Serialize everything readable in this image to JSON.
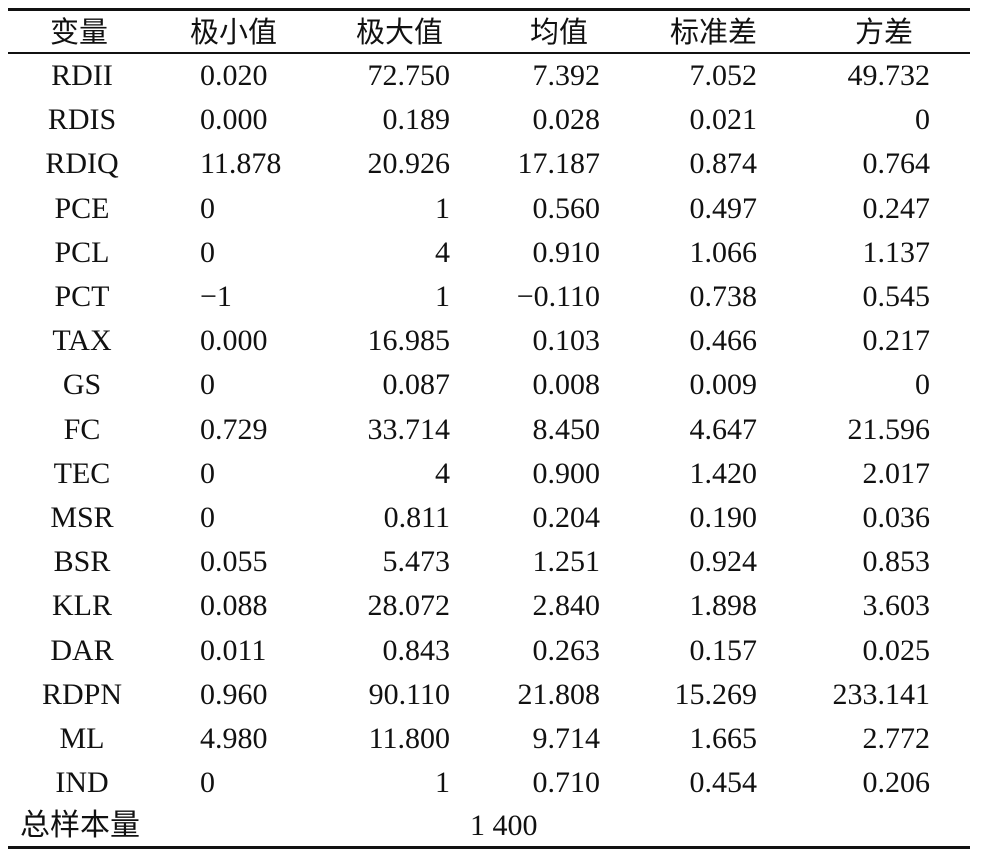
{
  "table": {
    "headers": [
      "变量",
      "极小值",
      "极大值",
      "均值",
      "标准差",
      "方差"
    ],
    "rows": [
      {
        "var": "RDII",
        "min": "0.020",
        "max": "72.750",
        "mean": "7.392",
        "sd": "7.052",
        "variance": "49.732"
      },
      {
        "var": "RDIS",
        "min": "0.000",
        "max": "0.189",
        "mean": "0.028",
        "sd": "0.021",
        "variance": "0"
      },
      {
        "var": "RDIQ",
        "min": "11.878",
        "max": "20.926",
        "mean": "17.187",
        "sd": "0.874",
        "variance": "0.764"
      },
      {
        "var": "PCE",
        "min": "0",
        "max": "1",
        "mean": "0.560",
        "sd": "0.497",
        "variance": "0.247"
      },
      {
        "var": "PCL",
        "min": "0",
        "max": "4",
        "mean": "0.910",
        "sd": "1.066",
        "variance": "1.137"
      },
      {
        "var": "PCT",
        "min": "−1",
        "max": "1",
        "mean": "−0.110",
        "sd": "0.738",
        "variance": "0.545"
      },
      {
        "var": "TAX",
        "min": "0.000",
        "max": "16.985",
        "mean": "0.103",
        "sd": "0.466",
        "variance": "0.217"
      },
      {
        "var": "GS",
        "min": "0",
        "max": "0.087",
        "mean": "0.008",
        "sd": "0.009",
        "variance": "0"
      },
      {
        "var": "FC",
        "min": "0.729",
        "max": "33.714",
        "mean": "8.450",
        "sd": "4.647",
        "variance": "21.596"
      },
      {
        "var": "TEC",
        "min": "0",
        "max": "4",
        "mean": "0.900",
        "sd": "1.420",
        "variance": "2.017"
      },
      {
        "var": "MSR",
        "min": "0",
        "max": "0.811",
        "mean": "0.204",
        "sd": "0.190",
        "variance": "0.036"
      },
      {
        "var": "BSR",
        "min": "0.055",
        "max": "5.473",
        "mean": "1.251",
        "sd": "0.924",
        "variance": "0.853"
      },
      {
        "var": "KLR",
        "min": "0.088",
        "max": "28.072",
        "mean": "2.840",
        "sd": "1.898",
        "variance": "3.603"
      },
      {
        "var": "DAR",
        "min": "0.011",
        "max": "0.843",
        "mean": "0.263",
        "sd": "0.157",
        "variance": "0.025"
      },
      {
        "var": "RDPN",
        "min": "0.960",
        "max": "90.110",
        "mean": "21.808",
        "sd": "15.269",
        "variance": "233.141"
      },
      {
        "var": "ML",
        "min": "4.980",
        "max": "11.800",
        "mean": "9.714",
        "sd": "1.665",
        "variance": "2.772"
      },
      {
        "var": "IND",
        "min": "0",
        "max": "1",
        "mean": "0.710",
        "sd": "0.454",
        "variance": "0.206"
      }
    ],
    "footer": {
      "label": "总样本量",
      "value": "1 400"
    }
  }
}
